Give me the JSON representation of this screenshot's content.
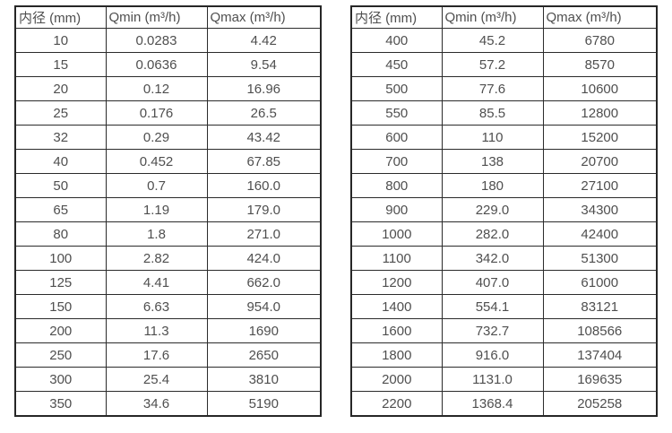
{
  "colors": {
    "border": "#262626",
    "text": "#4f4f4f",
    "background": "#ffffff"
  },
  "tables": [
    {
      "name": "flow-range-table-small-diameters",
      "headers": [
        "内径 (mm)",
        "Qmin (m³/h)",
        "Qmax (m³/h)"
      ],
      "rows": [
        [
          "10",
          "0.0283",
          "4.42"
        ],
        [
          "15",
          "0.0636",
          "9.54"
        ],
        [
          "20",
          "0.12",
          "16.96"
        ],
        [
          "25",
          "0.176",
          "26.5"
        ],
        [
          "32",
          "0.29",
          "43.42"
        ],
        [
          "40",
          "0.452",
          "67.85"
        ],
        [
          "50",
          "0.7",
          "160.0"
        ],
        [
          "65",
          "1.19",
          "179.0"
        ],
        [
          "80",
          "1.8",
          "271.0"
        ],
        [
          "100",
          "2.82",
          "424.0"
        ],
        [
          "125",
          "4.41",
          "662.0"
        ],
        [
          "150",
          "6.63",
          "954.0"
        ],
        [
          "200",
          "11.3",
          "1690"
        ],
        [
          "250",
          "17.6",
          "2650"
        ],
        [
          "300",
          "25.4",
          "3810"
        ],
        [
          "350",
          "34.6",
          "5190"
        ]
      ]
    },
    {
      "name": "flow-range-table-large-diameters",
      "headers": [
        "内径 (mm)",
        "Qmin (m³/h)",
        "Qmax (m³/h)"
      ],
      "rows": [
        [
          "400",
          "45.2",
          "6780"
        ],
        [
          "450",
          "57.2",
          "8570"
        ],
        [
          "500",
          "77.6",
          "10600"
        ],
        [
          "550",
          "85.5",
          "12800"
        ],
        [
          "600",
          "110",
          "15200"
        ],
        [
          "700",
          "138",
          "20700"
        ],
        [
          "800",
          "180",
          "27100"
        ],
        [
          "900",
          "229.0",
          "34300"
        ],
        [
          "1000",
          "282.0",
          "42400"
        ],
        [
          "1100",
          "342.0",
          "51300"
        ],
        [
          "1200",
          "407.0",
          "61000"
        ],
        [
          "1400",
          "554.1",
          "83121"
        ],
        [
          "1600",
          "732.7",
          "108566"
        ],
        [
          "1800",
          "916.0",
          "137404"
        ],
        [
          "2000",
          "1131.0",
          "169635"
        ],
        [
          "2200",
          "1368.4",
          "205258"
        ]
      ]
    }
  ]
}
